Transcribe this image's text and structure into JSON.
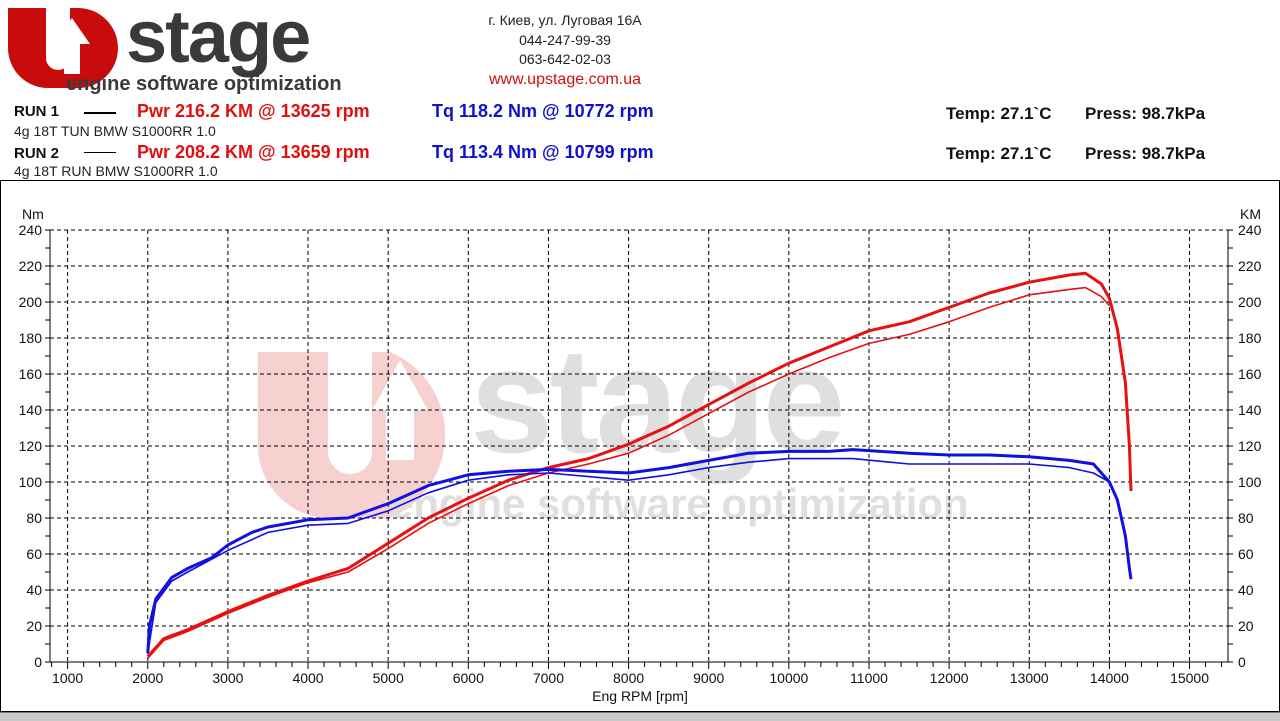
{
  "header": {
    "logo_text": "UPstage",
    "logo_tagline": "engine software optimization",
    "address": "г. Киев, ул. Луговая 16А",
    "phone1": "044-247-99-39",
    "phone2": "063-642-02-03",
    "website": "www.upstage.com.ua"
  },
  "runs": [
    {
      "label": "RUN 1",
      "power": "Pwr  216.2 KM @ 13625 rpm",
      "torque": "Tq 118.2 Nm @ 10772 rpm",
      "desc": "4g 18T TUN BMW S1000RR 1.0",
      "temp": "Temp: 27.1`C",
      "press": "Press: 98.7kPa"
    },
    {
      "label": "RUN 2",
      "power": "Pwr  208.2 KM @ 13659 rpm",
      "torque": "Tq 113.4 Nm @ 10799 rpm",
      "desc": "4g 18T RUN BMW S1000RR 1.0",
      "temp": "Temp: 27.1`C",
      "press": "Press: 98.7kPa"
    }
  ],
  "chart_data": {
    "type": "line",
    "xlabel": "Eng RPM [rpm]",
    "ylabel_left": "Nm",
    "ylabel_right": "KM",
    "xlim": [
      780,
      15480
    ],
    "ylim": [
      0,
      240
    ],
    "xticks": [
      1000,
      2000,
      3000,
      4000,
      5000,
      6000,
      7000,
      8000,
      9000,
      10000,
      11000,
      12000,
      13000,
      14000,
      15000
    ],
    "yticks": [
      0,
      20,
      40,
      60,
      80,
      100,
      120,
      140,
      160,
      180,
      200,
      220,
      240
    ],
    "grid": true,
    "colors": {
      "power": "#e81010",
      "torque": "#1010e0"
    },
    "series": [
      {
        "name": "RUN 1 Pwr",
        "axis": "right",
        "color": "#e81010",
        "x": [
          2000,
          2200,
          2500,
          3000,
          3500,
          4000,
          4500,
          5000,
          5500,
          6000,
          6500,
          7000,
          7500,
          8000,
          8500,
          9000,
          9500,
          10000,
          10500,
          11000,
          11500,
          12000,
          12500,
          13000,
          13500,
          13700,
          13900,
          14000,
          14100,
          14200,
          14250,
          14270
        ],
        "y": [
          3,
          13,
          18,
          28,
          37,
          45,
          52,
          66,
          80,
          91,
          101,
          108,
          113,
          121,
          131,
          143,
          155,
          166,
          175,
          184,
          189,
          197,
          205,
          211,
          215,
          216,
          210,
          202,
          185,
          155,
          120,
          95
        ]
      },
      {
        "name": "RUN 2 Pwr",
        "axis": "right",
        "color": "#e81010",
        "x": [
          2000,
          2200,
          2500,
          3000,
          3500,
          4000,
          4500,
          5000,
          5500,
          6000,
          6500,
          7000,
          7500,
          8000,
          8500,
          9000,
          9500,
          10000,
          10500,
          11000,
          11500,
          12000,
          12500,
          13000,
          13500,
          13700,
          13900,
          14000
        ],
        "y": [
          2,
          12,
          17,
          27,
          36,
          44,
          50,
          63,
          77,
          88,
          98,
          105,
          110,
          116,
          126,
          138,
          150,
          160,
          169,
          177,
          182,
          189,
          197,
          204,
          207,
          208,
          203,
          198
        ]
      },
      {
        "name": "RUN 1 Tq",
        "axis": "left",
        "color": "#1010e0",
        "x": [
          2000,
          2020,
          2100,
          2300,
          2500,
          2800,
          3000,
          3300,
          3500,
          4000,
          4500,
          5000,
          5500,
          6000,
          6500,
          7000,
          7500,
          8000,
          8500,
          9000,
          9500,
          10000,
          10500,
          10800,
          11500,
          12000,
          12500,
          13000,
          13500,
          13800,
          14000,
          14100,
          14200,
          14250,
          14270
        ],
        "y": [
          5,
          20,
          35,
          47,
          52,
          58,
          65,
          72,
          75,
          79,
          80,
          88,
          98,
          104,
          106,
          107,
          106,
          105,
          108,
          112,
          116,
          117,
          117,
          118,
          116,
          115,
          115,
          114,
          112,
          110,
          100,
          90,
          70,
          52,
          46
        ]
      },
      {
        "name": "RUN 2 Tq",
        "axis": "left",
        "color": "#1010e0",
        "x": [
          2000,
          2100,
          2300,
          2500,
          3000,
          3500,
          4000,
          4500,
          5000,
          5500,
          6000,
          6500,
          7000,
          7500,
          8000,
          8500,
          9000,
          9500,
          10000,
          10800,
          11500,
          12000,
          13000,
          13500,
          13800,
          14000
        ],
        "y": [
          5,
          33,
          45,
          50,
          62,
          72,
          76,
          77,
          84,
          94,
          101,
          104,
          105,
          103,
          101,
          104,
          108,
          111,
          113,
          113,
          110,
          110,
          110,
          108,
          105,
          100
        ]
      }
    ]
  }
}
